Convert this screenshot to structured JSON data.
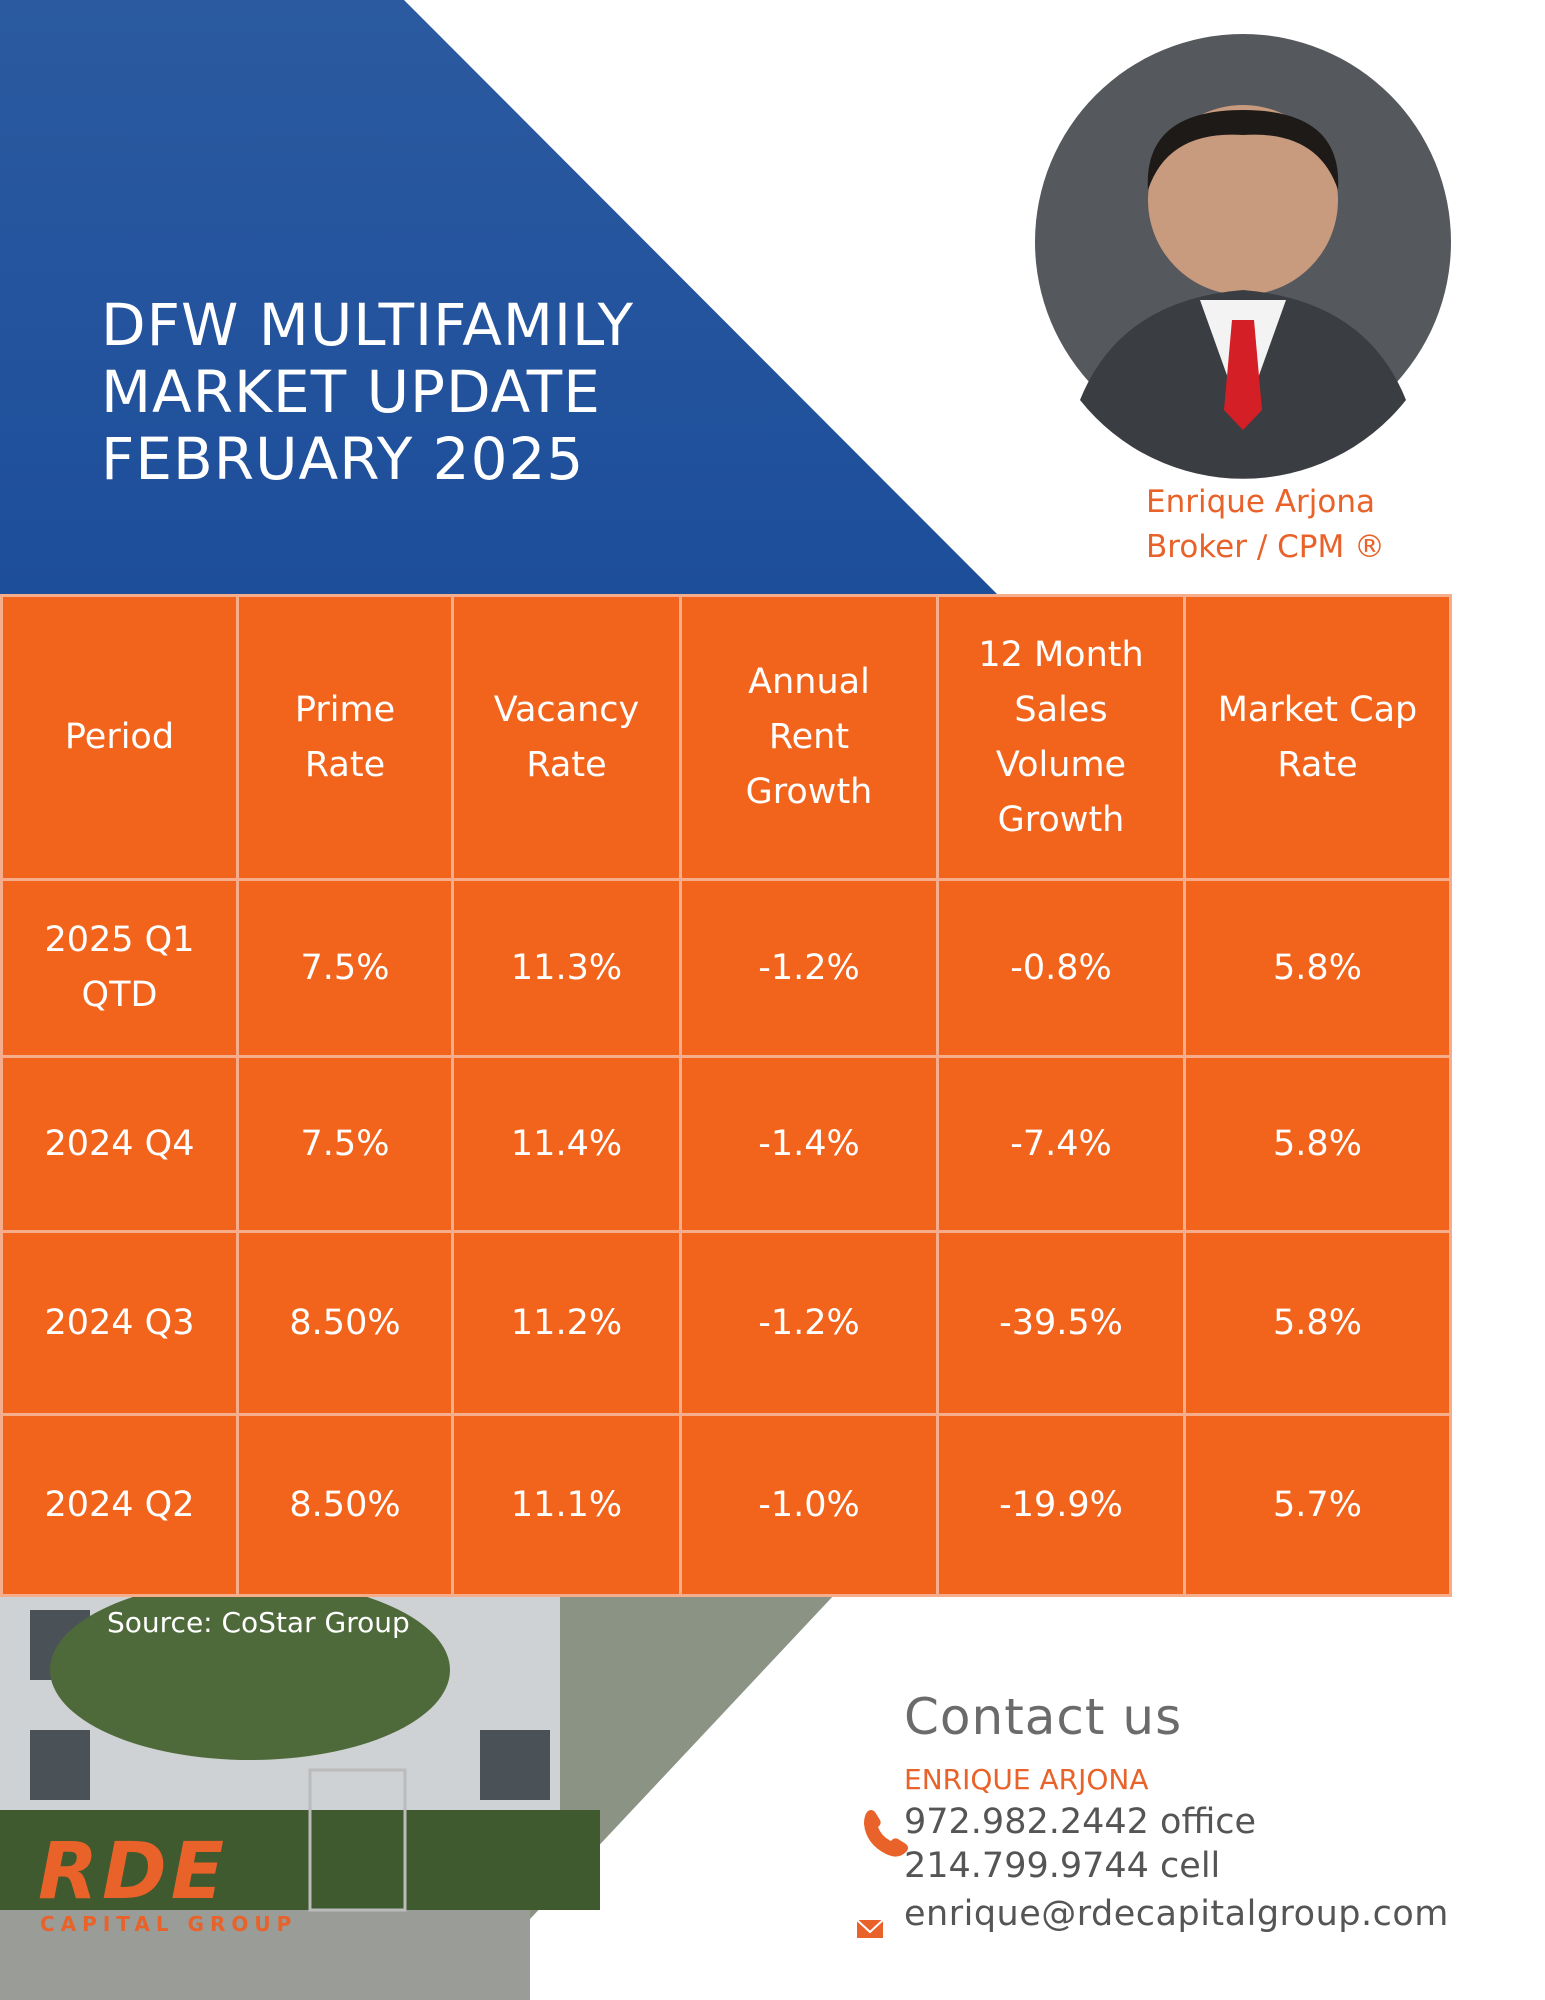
{
  "header": {
    "title_lines": [
      "DFW MULTIFAMILY",
      "MARKET UPDATE",
      "FEBRUARY 2025"
    ]
  },
  "profile": {
    "name": "Enrique Arjona",
    "role": "Broker / CPM ®"
  },
  "table": {
    "headers": [
      [
        "Period"
      ],
      [
        "Prime",
        "Rate"
      ],
      [
        "Vacancy",
        "Rate"
      ],
      [
        "Annual",
        "Rent",
        "Growth"
      ],
      [
        "12 Month",
        "Sales",
        "Volume",
        "Growth"
      ],
      [
        "Market Cap",
        "Rate"
      ]
    ],
    "rows": [
      [
        "2025 Q1 QTD",
        "7.5%",
        "11.3%",
        "-1.2%",
        "-0.8%",
        "5.8%"
      ],
      [
        "2024 Q4",
        "7.5%",
        "11.4%",
        "-1.4%",
        "-7.4%",
        "5.8%"
      ],
      [
        "2024 Q3",
        "8.50%",
        "11.2%",
        "-1.2%",
        "-39.5%",
        "5.8%"
      ],
      [
        "2024 Q2",
        "8.50%",
        "11.1%",
        "-1.0%",
        "-19.9%",
        "5.7%"
      ]
    ]
  },
  "source": "Source: CoStar Group",
  "logo": {
    "mark": "RDE",
    "subtitle": "CAPITAL GROUP"
  },
  "contact": {
    "heading": "Contact us",
    "name": "ENRIQUE ARJONA",
    "phone_office": "972.982.2442 office",
    "phone_cell": "214.799.9744 cell",
    "email": "enrique@rdecapitalgroup.com"
  }
}
